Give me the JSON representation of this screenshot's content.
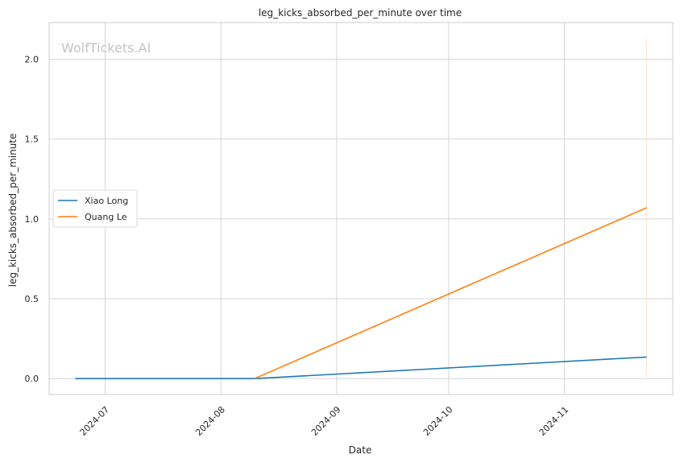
{
  "chart_data": {
    "type": "line",
    "title": "leg_kicks_absorbed_per_minute over time",
    "xlabel": "Date",
    "ylabel": "leg_kicks_absorbed_per_minute",
    "watermark": "WolfTickets.AI",
    "x_axis_type": "date",
    "xlim": [
      "2024-06-16",
      "2024-11-30"
    ],
    "ylim": [
      -0.1,
      2.23
    ],
    "x_ticks": [
      "2024-07-01",
      "2024-08-01",
      "2024-09-01",
      "2024-10-01",
      "2024-11-01"
    ],
    "x_tick_labels": [
      "2024-07",
      "2024-08",
      "2024-09",
      "2024-10",
      "2024-11"
    ],
    "y_ticks": [
      0.0,
      0.5,
      1.0,
      1.5,
      2.0
    ],
    "y_tick_labels": [
      "0.0",
      "0.5",
      "1.0",
      "1.5",
      "2.0"
    ],
    "grid": true,
    "legend_position": "center-left",
    "series": [
      {
        "name": "Xiao Long",
        "color": "#1f77b4",
        "points": [
          {
            "x": "2024-06-23",
            "y": 0.0
          },
          {
            "x": "2024-08-10",
            "y": 0.0
          },
          {
            "x": "2024-11-23",
            "y": 0.135
          }
        ]
      },
      {
        "name": "Quang Le",
        "color": "#ff7f0e",
        "points": [
          {
            "x": "2024-08-10",
            "y": 0.0
          },
          {
            "x": "2024-11-23",
            "y": 1.07
          }
        ]
      }
    ],
    "reference_line": {
      "x": "2024-11-23",
      "y_range": [
        0.0,
        2.13
      ],
      "color": "#fbe3cc"
    }
  }
}
